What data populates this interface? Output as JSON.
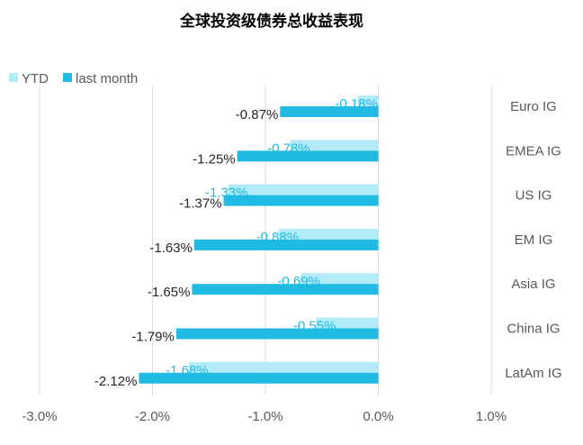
{
  "chart_data": {
    "type": "bar",
    "orientation": "horizontal",
    "title": "全球投资级债券总收益表现",
    "categories": [
      "Euro IG",
      "EMEA IG",
      "US IG",
      "EM IG",
      "Asia IG",
      "China IG",
      "LatAm IG"
    ],
    "series": [
      {
        "name": "YTD",
        "values": [
          -0.18,
          -0.78,
          -1.33,
          -0.88,
          -0.69,
          -0.55,
          -1.68
        ],
        "labels": [
          "-0.18%",
          "-0.78%",
          "-1.33%",
          "-0.88%",
          "-0.69%",
          "-0.55%",
          "-1.68%"
        ]
      },
      {
        "name": "last month",
        "values": [
          -0.87,
          -1.25,
          -1.37,
          -1.63,
          -1.65,
          -1.79,
          -2.12
        ],
        "labels": [
          "-0.87%",
          "-1.25%",
          "-1.37%",
          "-1.63%",
          "-1.65%",
          "-1.79%",
          "-2.12%"
        ]
      }
    ],
    "xlim": [
      -3.0,
      1.0
    ],
    "xticks": [
      -3.0,
      -2.0,
      -1.0,
      0.0,
      1.0
    ],
    "xtick_labels": [
      "-3.0%",
      "-2.0%",
      "-1.0%",
      "0.0%",
      "1.0%"
    ],
    "grid": true,
    "legend": "top-left",
    "colors": {
      "YTD": "#b3ebf8",
      "last month": "#1fbbe3",
      "ytd_label": "#1fbbe3",
      "last_month_label": "#262626",
      "grid": "#d9d9d9"
    }
  }
}
